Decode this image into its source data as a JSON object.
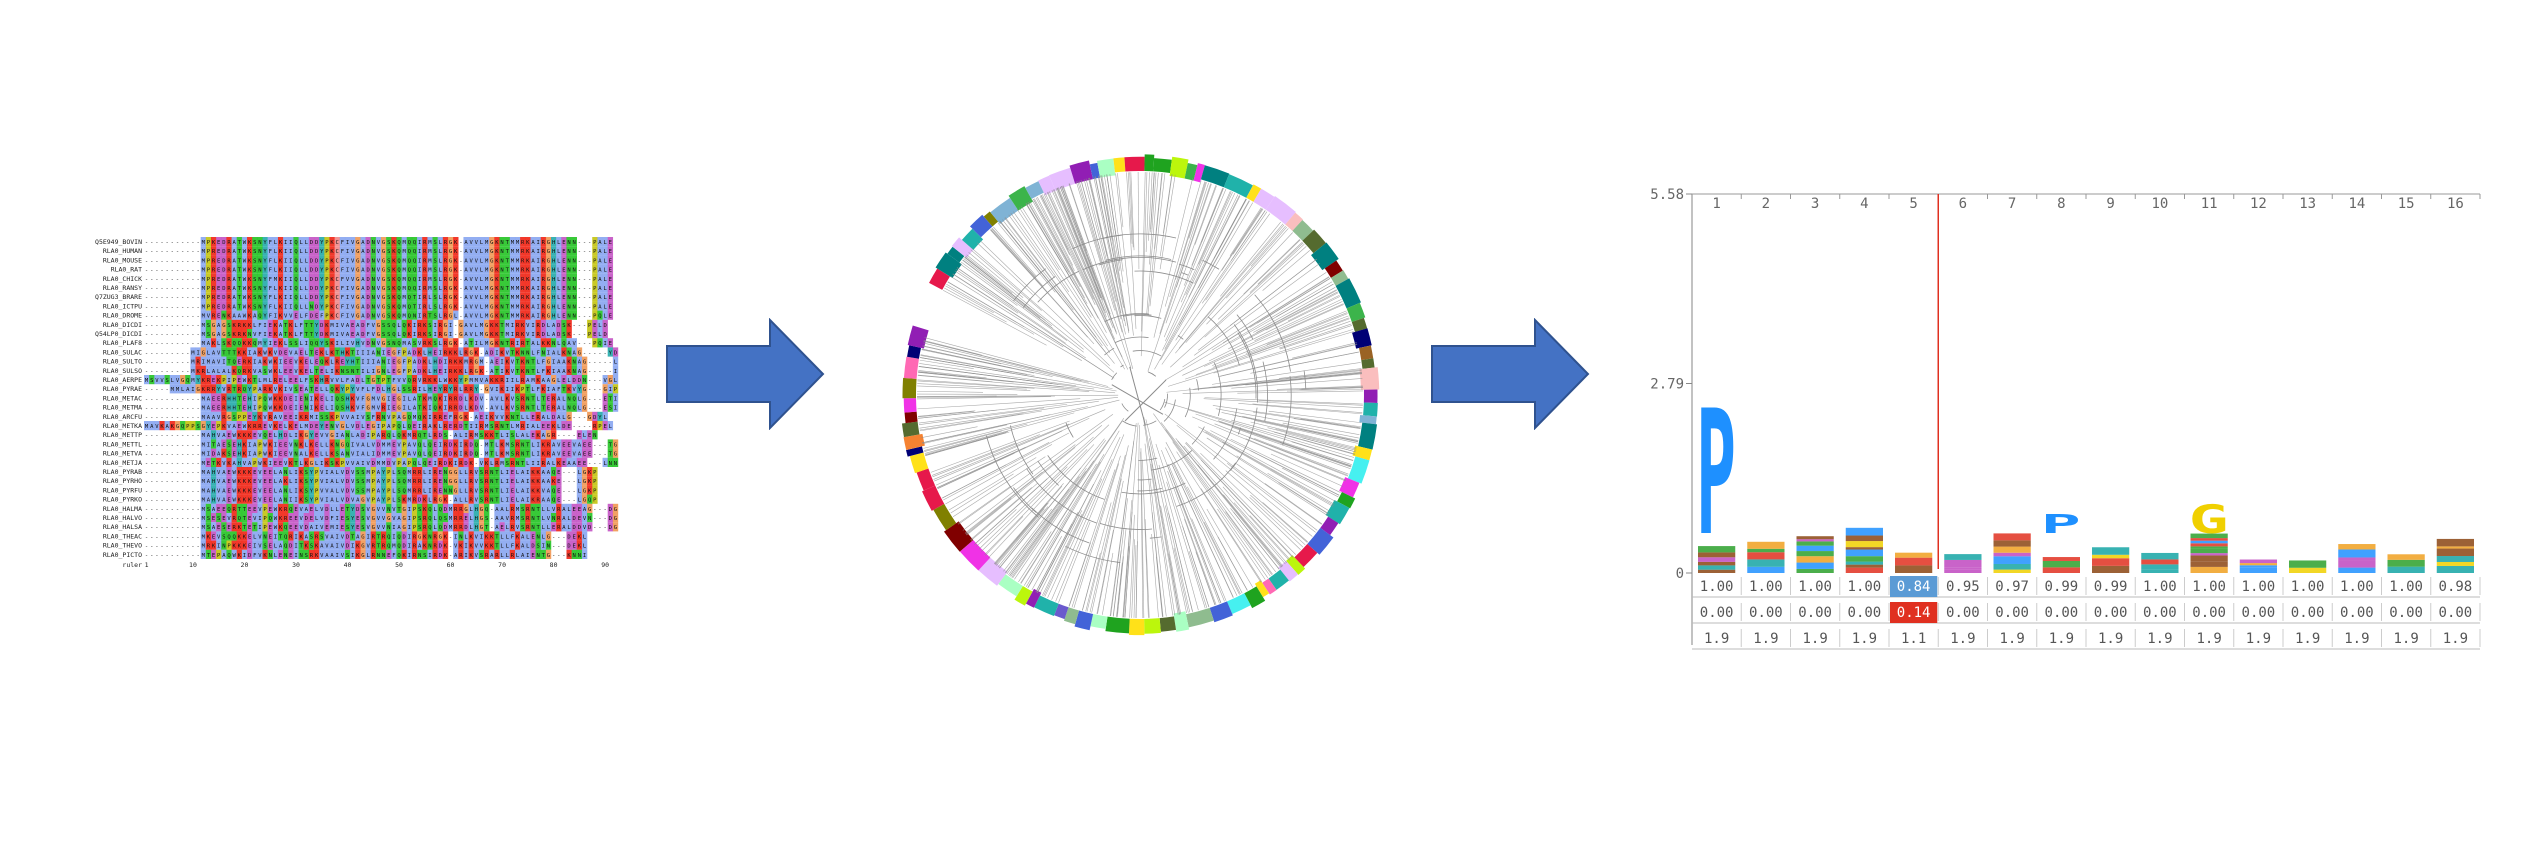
{
  "alignment": {
    "sequences": [
      {
        "name": "Q5E949_BOVIN",
        "seq": "-----------MPKEDRATWKSNYFLKIIQLLDDYPKCFIVGADNVGSKQMQQIRMSLRGK-AVVLMGKNTMMRKAIRGHLENN---PALE"
      },
      {
        "name": "RLA0_HUMAN",
        "seq": "-----------MPREDRATWKSNYFLKIIQLLDDYPKCFIVGADNVGSKQMQQIRMSLRGK-AVVLMGKNTMMRKAIRGHLENN---PALE"
      },
      {
        "name": "RLA0_MOUSE",
        "seq": "-----------MPREDRATWKSNYFLKIIQLLDDYPKCFIVGADNVGSKQMQQIRMSLRGK-AVVLMGKNTMMRKAIRGHLENN---PALE"
      },
      {
        "name": "RLA0_RAT",
        "seq": "-----------MPREDRATWKSNYFLKIIQLLDDYPKCFIVGADNVGSKQMQQIRMSLRGK-AVVLMGKNTMMRKAIRGHLENN---PALE"
      },
      {
        "name": "RLA0_CHICK",
        "seq": "-----------MPREDRATWKSNYFMKIIQLLDDYPKCFVVGADNVGSKQMQQIRMSLRGK-AVVLMGKNTMMRKAIRGHLENN---PALE"
      },
      {
        "name": "RLA0_RANSY",
        "seq": "-----------MPREDRATWKSNYFLKIIQLLDDYPKCFIVGADNVGSKQMQQIRMSLRGK-AVVLMGKNTMMRKAIRGHLENN---PALE"
      },
      {
        "name": "Q7ZUG3_BRARE",
        "seq": "-----------MPREDRATWKSNYFLKIIQLLDDYPKCFIVGADNVGSKQMQTIRLSLRGK-AVVLMGKNTMMRKAIRGHLENN---PALE"
      },
      {
        "name": "RLA0_ICTPU",
        "seq": "-----------MPREDRATWKSNYFLKIIQLLNDYPKCFIVGADNVGSKQMQTIRLSLRGK-AVVLMGKNTMMRKAIRGHLENN---PALE"
      },
      {
        "name": "RLA0_DROME",
        "seq": "-----------MVRENKAAWKAQYFIKVVELFDEFPKCFIVGADNVGSKQMQNIRTSLRGL-AVVLMGKNTMMRKAIRGHLENN---PQLE"
      },
      {
        "name": "RLA0_DICDI",
        "seq": "-----------MSGAGSKRKKLFIEKATKLFTTYDKMIVAEADFVGSSQLQKIRKSIRGI-GAVLMGKKTMIRKVIRDLADSK---PELD"
      },
      {
        "name": "Q54LP0_DICDI",
        "seq": "-----------MSGAGSKRKNVFIEKATKLFTTYDKMIVAEADFVGSSQLQKIRKSIRGI-GAVLMGKKTMIRKVIRDLADSK---PELD"
      },
      {
        "name": "RLA0_PLAF8",
        "seq": "-----------MAKLSKQQKKQMYIEKLSSLIQQYSKILIVHVDNVGSNQMASVRKSLRGK-ATILMGKNTRIRTALKKNLQAV---PQIE"
      },
      {
        "name": "RLA0_SULAC",
        "seq": "---------MIGLAVTTTKKIAKWKVDEVAELTEKLKTHKTIIIANIEGFPADKLHEIRKKLRGK-ADIKVTKNNLFNIALKNAG-----YDT"
      },
      {
        "name": "RLA0_SULTO",
        "seq": "---------MRIMAVITQERKIAKWKIEEVKELEQKLREYHTIIIANIEGFPADKLHDIRKKMRGM-AEIKVTKNTLFGIAAKNAG-----LDV"
      },
      {
        "name": "RLA0_SULSO",
        "seq": "---------MKRLALALKQRKVASWKLEEVKELTELIKNSNTILIGNLEGFPADKLHEIRKKLRGK-ATIKVTKNTLFKIAAKNAG-----IDI"
      },
      {
        "name": "RLA0_AERPE",
        "seq": "MSVVSLVGQMYKREKPIPEWKTLMLRELEELFSKHRVVLFADLTGTPTFVVQRVRKKLWKKYPMMVAKKRIILRAMKAAGLELDDN---VGLD"
      },
      {
        "name": "RLA0_PYRAE",
        "seq": "-----MMLAIGKRRYVRTRQYPARKVKIVSEATELLQKYPYVFLFDLHGLSSRILHEYRYRLRRY-GVIKIIKPTLFKIAFTKVYG---GIPA"
      },
      {
        "name": "RLA0_METAC",
        "seq": "-----------MAEERHHTEHIPQWKKDEIENIKELIQSHKVFGMVGIEGILATKMQKIRRDLKDV-AVLKVSRNTLTERALNQLG---ETIP"
      },
      {
        "name": "RLA0_METMA",
        "seq": "-----------MAEERHHTEHIPQWKKDEIENIKELIQSHKVFGMVRIEGILATKIQKIRRDLKDV-AVLKVSRNTLTERALNQLG---ESIP"
      },
      {
        "name": "RLA0_ARCFU",
        "seq": "-----------MAAVRGSPPEYKVRAVEEIKRMISSKPVVAIVSFRNVPAGQMQKIRREFRGK-AEIKVVKNTLLERALDALG---GDYL"
      },
      {
        "name": "RLA0_METKA",
        "seq": "MAVKAKGQPPSGYEPKVAEWKRREVKELKELMDEYENVGLVDLEGIPAPQLQEIRAKLRERDTIIRMSRNTLMRIALEEKLDE----RPEL"
      },
      {
        "name": "RLA0_METTP",
        "seq": "-----------MAHVAEWKKKEVQELHDLIKGYEVVGIANLADIPARQLQKMRQTLRDS-ALIRMSKKTLISLALEKAGR----ELEN"
      },
      {
        "name": "RLA0_METTL",
        "seq": "-----------MITAESEHKIAPWKIEEVNKLKELLKNGQIVALVDMMEVPAVQLQEIRDKIRDQ-MTLKMSRNTLIKRAVEEVAEE---TGNP"
      },
      {
        "name": "RLA0_METVA",
        "seq": "-----------MIDAKSEHKIAPWKIEEVNALKELLKSANVIALIDMMEVPAVQLQEIRDKIRDQ-MTLKMSRNTLIKRAVEEVAEE---TGNP"
      },
      {
        "name": "RLA0_METJA",
        "seq": "-----------METKVKAHVAPWKIEEVKTLKGLIKSKPVVAIVDMMDVPAPQLQEIRDKIRDK-VKLRMSRNTLIIRALKEAAEE---LNNP"
      },
      {
        "name": "RLA0_PYRAB",
        "seq": "-----------MAHVAEWKKKEVEELANLIKSYPVIALVDVSSMPAYPLSQMRRLIRENGGLLRVSRNTLIELAIKKAAQE---LGKP"
      },
      {
        "name": "RLA0_PYRHO",
        "seq": "-----------MAHVAEWKKKEVEELAKLIKSYPVIALVDVSSMPAYPLSQMRRLIRENGGLLRVSRNTLIELAIKKAAKE---LGKP"
      },
      {
        "name": "RLA0_PYRFU",
        "seq": "-----------MAHVAEWKKKEVEELANLIKSYPVVALVDVSSMPAYPLSQMRRLIRENNGLLRVSRNTLIELAIKKVAQE---LGKP"
      },
      {
        "name": "RLA0_PYRKO",
        "seq": "-----------MAHVAEWKKKEVEELANIIKSYPVIALVDVAGVPAYPLSKMRDKLRGK-ALLRVSRNTLIELAIKRAAQE---LGQP"
      },
      {
        "name": "RLA0_HALMA",
        "seq": "-----------MSAEEQRTTEEVPEWKRQEVAELVDLLETYDSVGVVNVTGIPSKQLQDMRRGLHGQ-AALRMSRNTLLVRALEEAG---DGLD"
      },
      {
        "name": "RLA0_HALVO",
        "seq": "-----------MSESEVRQTEVIPQWKREEVDELVDFIESYESVGVVGVAGIPSRQLQSMRRELHGS-AAVRMSRNTLVNRALDEVN---DGFE"
      },
      {
        "name": "RLA0_HALSA",
        "seq": "-----------MSAESERKTETIPEWKQEEVDAIVEMIESYESVGVVNIAGIPSRQLQDMRRDLHGT-AELRVSRNTLLERALDDVD---DGLE"
      },
      {
        "name": "RLA0_THEAC",
        "seq": "-----------MKEVSQQKKELVNEITQRIKASRSVAIVDTAGIRTRQIQDIRGKNRGK-INLKVIKKTLLFKALENLG---DEKL"
      },
      {
        "name": "RLA0_THEVO",
        "seq": "-----------MRKINPKKKEIVSELAQDITKSKAVAIVDIKGVRTRQMQDIRAKNRDK-VKIKVVKKTLLFKALDSIN---DEKL"
      },
      {
        "name": "RLA0_PICTO",
        "seq": "-----------MTEPAQWKIDFVKNLENEINSRKVAAIVSIKGLRNNEFQKIRNSIRDK-ARIKVSRARLLRLAIENTG---KNNI"
      }
    ],
    "ruler_label": "ruler",
    "ruler_ticks": [
      "1",
      "10",
      "20",
      "30",
      "40",
      "50",
      "60",
      "70",
      "80",
      "90"
    ],
    "colors": {
      "hydrophobic": "#80a0f0",
      "positive": "#f01505",
      "negative": "#c048c0",
      "polar": "#15c015",
      "cysteine": "#f08080",
      "glycine": "#f09048",
      "proline": "#c0c000",
      "aromatic": "#15a4a4"
    }
  },
  "tree": {
    "ring_colors": [
      "#e6194b",
      "#3cb44b",
      "#ffe119",
      "#4363d8",
      "#f58231",
      "#911eb4",
      "#46f0f0",
      "#f032e6",
      "#bcf60c",
      "#fabebe",
      "#008080",
      "#e6beff",
      "#9a6324",
      "#800000",
      "#aaffc3",
      "#808000",
      "#000075",
      "#1fa31f",
      "#8fbc8f",
      "#7fb3d5",
      "#6a5acd",
      "#20b2aa",
      "#ff69b4",
      "#556b2f"
    ],
    "branch_color": "#8c8c8c"
  },
  "logo": {
    "y_ticks": [
      "5.58",
      "2.79",
      "0"
    ],
    "positions": [
      "1",
      "2",
      "3",
      "4",
      "5",
      "6",
      "7",
      "8",
      "9",
      "10",
      "11",
      "12",
      "13",
      "14",
      "15",
      "16"
    ],
    "letters": [
      {
        "pos": 1,
        "char": "P",
        "height": 1.85,
        "color": "#1e90ff"
      },
      {
        "pos": 8,
        "char": "P",
        "height": 0.28,
        "color": "#1e90ff"
      },
      {
        "pos": 11,
        "char": "G",
        "height": 0.42,
        "color": "#f0d000"
      }
    ],
    "row1": [
      "1.00",
      "1.00",
      "1.00",
      "1.00",
      "0.84",
      "0.95",
      "0.97",
      "0.99",
      "0.99",
      "1.00",
      "1.00",
      "1.00",
      "1.00",
      "1.00",
      "1.00",
      "0.98"
    ],
    "row2": [
      "0.00",
      "0.00",
      "0.00",
      "0.00",
      "0.14",
      "0.00",
      "0.00",
      "0.00",
      "0.00",
      "0.00",
      "0.00",
      "0.00",
      "0.00",
      "0.00",
      "0.00",
      "0.00"
    ],
    "row3": [
      "1.9",
      "1.9",
      "1.9",
      "1.9",
      "1.1",
      "1.9",
      "1.9",
      "1.9",
      "1.9",
      "1.9",
      "1.9",
      "1.9",
      "1.9",
      "1.9",
      "1.9",
      "1.9"
    ],
    "highlight_position": 5,
    "highlight_row1_color": "#5b9bd5",
    "highlight_row2_color": "#e03020",
    "marker_color": "#e03020",
    "ymax": 5.58
  },
  "arrows": {
    "fill": "#4472c4",
    "stroke": "#2f528f"
  }
}
